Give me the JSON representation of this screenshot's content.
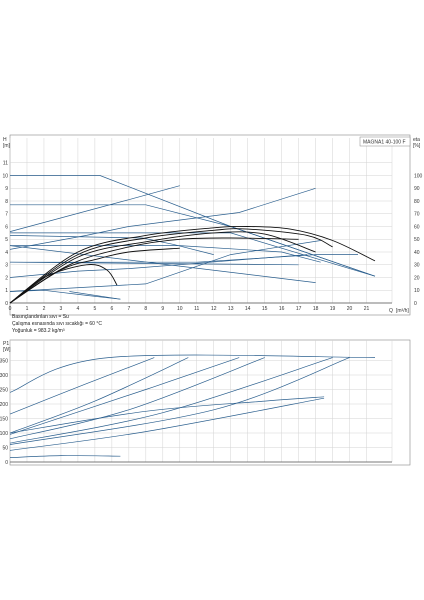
{
  "colors": {
    "curve": "#2b5f8e",
    "black": "#111111",
    "grid": "#d3d3d3",
    "frame": "#888888"
  },
  "chart_data": [
    {
      "type": "line",
      "title": "MAGNA1 40-100 F",
      "ylabel": "H",
      "yunit": "[m]",
      "xlabel": "Q",
      "xunit": "[m³/h]",
      "y2label": "eta",
      "y2unit": "[%]",
      "xlim": [
        0,
        22.5
      ],
      "ylim": [
        0,
        12
      ],
      "y2lim": [
        0,
        100
      ],
      "x_ticks": [
        "0",
        "1",
        "2",
        "3",
        "4",
        "5",
        "6",
        "7",
        "8",
        "9",
        "10",
        "11",
        "12",
        "13",
        "14",
        "15",
        "16",
        "17",
        "18",
        "19",
        "20",
        "21"
      ],
      "y_ticks": [
        "0",
        "1",
        "2",
        "3",
        "4",
        "5",
        "6",
        "7",
        "8",
        "9",
        "10",
        "11"
      ],
      "y2_ticks": [
        "0",
        "10",
        "20",
        "30",
        "40",
        "50",
        "60",
        "70",
        "80",
        "90",
        "100"
      ],
      "grid": true,
      "series": [
        {
          "color": "curve",
          "x": [
            0,
            5.3,
            13,
            21.5
          ],
          "y": [
            10,
            10,
            6,
            2.1
          ]
        },
        {
          "color": "curve",
          "x": [
            0,
            8,
            13,
            21.5
          ],
          "y": [
            7.7,
            7.7,
            6,
            2.1
          ]
        },
        {
          "color": "curve",
          "x": [
            0,
            13,
            21.5
          ],
          "y": [
            5.5,
            5.5,
            2.1
          ]
        },
        {
          "color": "curve",
          "x": [
            0,
            10,
            16,
            18.3
          ],
          "y": [
            4.5,
            4.5,
            4.0,
            3.2
          ]
        },
        {
          "color": "curve",
          "x": [
            0,
            7.8,
            9.6,
            12
          ],
          "y": [
            5.3,
            5.1,
            4.6,
            3.8
          ]
        },
        {
          "color": "curve",
          "x": [
            0,
            11,
            18,
            20.5
          ],
          "y": [
            3.2,
            3.2,
            3.8,
            3.8
          ]
        },
        {
          "color": "curve",
          "x": [
            0,
            17
          ],
          "y": [
            3.2,
            3.0
          ]
        },
        {
          "color": "curve",
          "x": [
            0,
            4,
            7,
            17.5
          ],
          "y": [
            2,
            2.5,
            2.7,
            3.8
          ]
        },
        {
          "color": "curve",
          "x": [
            0,
            18
          ],
          "y": [
            4.5,
            1.6
          ]
        },
        {
          "color": "curve",
          "x": [
            0,
            8,
            13,
            18.3
          ],
          "y": [
            0.9,
            1.5,
            3.8,
            4.9
          ]
        },
        {
          "color": "curve",
          "x": [
            0,
            4.5,
            7,
            13.5,
            18
          ],
          "y": [
            4.2,
            5.3,
            6.0,
            7.1,
            9.0
          ]
        },
        {
          "color": "curve",
          "x": [
            0,
            7,
            10
          ],
          "y": [
            5.6,
            8.1,
            9.2
          ]
        },
        {
          "color": "curve",
          "x": [
            3.5,
            6.5
          ],
          "y": [
            0.9,
            0.3
          ]
        },
        {
          "color": "curve",
          "x": [
            0,
            2,
            4.5,
            6.5
          ],
          "y": [
            0.9,
            1.0,
            0.6,
            0.3
          ]
        },
        {
          "color": "black",
          "x": [
            0,
            4,
            8,
            12,
            14,
            16.5,
            19,
            21.5
          ],
          "y": [
            0,
            4.0,
            5.3,
            5.9,
            6.0,
            5.8,
            4.9,
            3.3
          ]
        },
        {
          "color": "black",
          "x": [
            0,
            4,
            8,
            12,
            14,
            17.5,
            19
          ],
          "y": [
            0,
            3.8,
            5.1,
            5.7,
            5.8,
            5.3,
            4.4
          ]
        },
        {
          "color": "black",
          "x": [
            0,
            4,
            8,
            12,
            15,
            18
          ],
          "y": [
            0,
            3.6,
            4.8,
            5.5,
            5.4,
            4.0
          ]
        },
        {
          "color": "black",
          "x": [
            0,
            3.5,
            7,
            10,
            13,
            17
          ],
          "y": [
            0,
            3.0,
            4.4,
            5.0,
            5.1,
            5.0
          ]
        },
        {
          "color": "black",
          "x": [
            0,
            3,
            5,
            7,
            10
          ],
          "y": [
            0,
            2.6,
            3.4,
            4.0,
            4.3
          ]
        },
        {
          "color": "black",
          "x": [
            0,
            2,
            4.5,
            5.7,
            6.3
          ],
          "y": [
            0,
            2.0,
            3.0,
            2.6,
            1.4
          ]
        }
      ]
    },
    {
      "type": "line",
      "ylabel": "P1",
      "yunit": "[W]",
      "xlim": [
        0,
        22.5
      ],
      "ylim": [
        0,
        400
      ],
      "y_ticks": [
        "0",
        "50",
        "100",
        "150",
        "200",
        "250",
        "300",
        "350"
      ],
      "grid": true,
      "series": [
        {
          "color": "curve",
          "x": [
            0,
            5.8,
            21.5
          ],
          "y": [
            240,
            360,
            360
          ]
        },
        {
          "color": "curve",
          "x": [
            0,
            4.5,
            8.5
          ],
          "y": [
            165,
            270,
            360
          ]
        },
        {
          "color": "curve",
          "x": [
            0,
            5,
            10.5
          ],
          "y": [
            100,
            210,
            360
          ]
        },
        {
          "color": "curve",
          "x": [
            0,
            8,
            13.5
          ],
          "y": [
            95,
            250,
            360
          ]
        },
        {
          "color": "curve",
          "x": [
            0,
            7,
            15
          ],
          "y": [
            80,
            180,
            360
          ]
        },
        {
          "color": "curve",
          "x": [
            0,
            9,
            19
          ],
          "y": [
            65,
            170,
            360
          ]
        },
        {
          "color": "curve",
          "x": [
            0,
            12,
            20
          ],
          "y": [
            60,
            180,
            360
          ]
        },
        {
          "color": "curve",
          "x": [
            0,
            8,
            18.5
          ],
          "y": [
            40,
            105,
            220
          ]
        },
        {
          "color": "curve",
          "x": [
            0,
            8,
            15,
            18.5
          ],
          "y": [
            100,
            175,
            210,
            225
          ]
        },
        {
          "color": "curve",
          "x": [
            0,
            3,
            6.5
          ],
          "y": [
            15,
            22,
            20
          ]
        }
      ]
    }
  ],
  "notes": [
    "Basınçlandırılan sıvı = Su",
    "Çalışma esnasında sıvı sıcaklığı = 60 °C",
    "Yoğunluk = 983.2 kg/m³"
  ]
}
